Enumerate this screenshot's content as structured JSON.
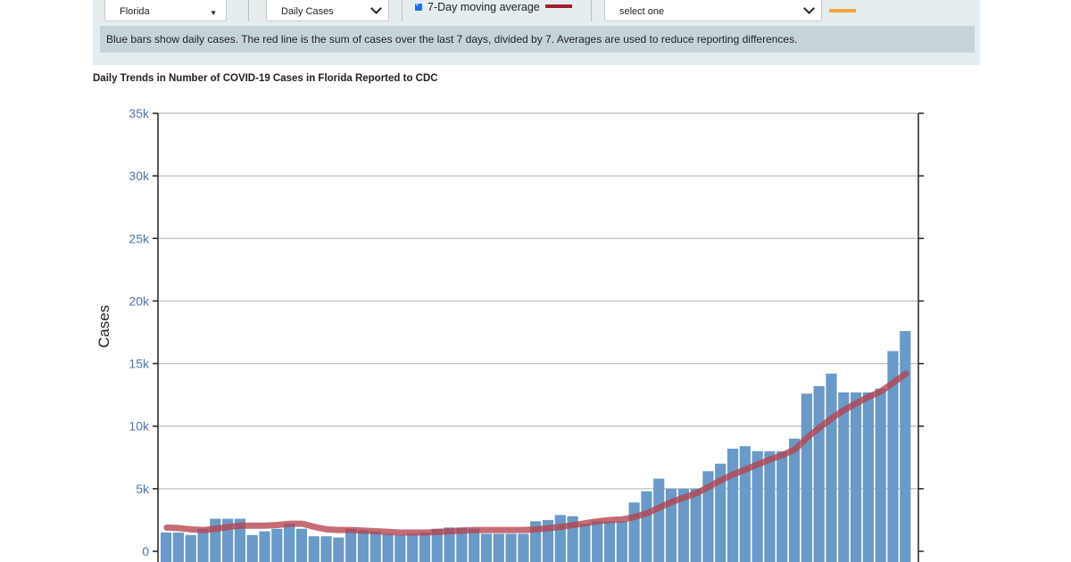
{
  "controls": {
    "state_value": "Florida",
    "metric_value": "Daily Cases",
    "moving_average_label": "7-Day moving average",
    "compare_placeholder": "select one",
    "caption": "Blue bars show daily cases. The red line is the sum of cases over the last 7 days, divided by 7. Averages are used to reduce reporting differences."
  },
  "colors": {
    "bar": "#6a9ac7",
    "moving_average": "#b5434d",
    "compare_line": "#f2a43c",
    "panel": "#e4eef1"
  },
  "chart_data": {
    "type": "bar",
    "title": "Daily Trends in Number of COVID-19 Cases in Florida Reported to CDC",
    "ylabel": "Cases",
    "ylim": [
      0,
      35000
    ],
    "yticks": [
      0,
      5000,
      10000,
      15000,
      20000,
      25000,
      30000,
      35000
    ],
    "yticklabels": [
      "0",
      "5k",
      "10k",
      "15k",
      "20k",
      "25k",
      "30k",
      "35k"
    ],
    "grid": true,
    "series": [
      {
        "kind": "bar",
        "values": [
          1500,
          1500,
          1300,
          1800,
          2600,
          2600,
          2600,
          1300,
          1600,
          1800,
          2200,
          1800,
          1200,
          1200,
          1100,
          1800,
          1700,
          1600,
          1400,
          1300,
          1400,
          1500,
          1800,
          1900,
          1900,
          1800,
          1400,
          1400,
          1400,
          1400,
          2400,
          2500,
          2900,
          2800,
          2200,
          2400,
          2400,
          2400,
          3900,
          4800,
          5800,
          5000,
          5000,
          5000,
          6400,
          7000,
          8200,
          8400,
          8000,
          8000,
          8000,
          9000,
          12600,
          13200,
          14200,
          12700,
          12700,
          12700,
          13000,
          16000,
          17600
        ]
      },
      {
        "kind": "line",
        "values": [
          1900,
          1850,
          1750,
          1700,
          1800,
          1950,
          2050,
          2050,
          2050,
          2100,
          2200,
          2200,
          1950,
          1750,
          1700,
          1700,
          1650,
          1600,
          1550,
          1500,
          1500,
          1500,
          1550,
          1600,
          1650,
          1700,
          1700,
          1700,
          1700,
          1700,
          1750,
          1850,
          1950,
          2100,
          2250,
          2400,
          2500,
          2550,
          2750,
          3050,
          3500,
          3950,
          4300,
          4650,
          5150,
          5700,
          6150,
          6550,
          6950,
          7350,
          7700,
          8150,
          9100,
          9900,
          10650,
          11300,
          11850,
          12350,
          12800,
          13500,
          14200
        ]
      }
    ]
  }
}
